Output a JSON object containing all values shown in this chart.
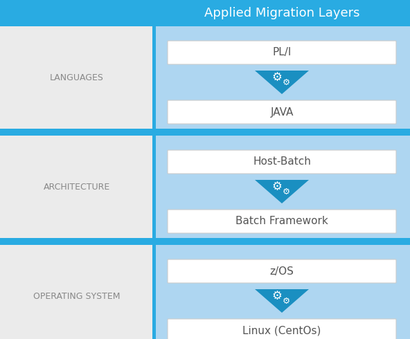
{
  "title": "Applied Migration Layers",
  "title_color": "#FFFFFF",
  "title_bg_color": "#29ABE2",
  "light_blue_panel": "#AED6F1",
  "separator_color": "#29ABE2",
  "left_bg_color": "#EBEBEB",
  "row_label_color": "#888888",
  "box_text_color": "#555555",
  "arrow_color": "#1A8FC1",
  "rows": [
    {
      "label": "LANGUAGES",
      "top_box": "PL/I",
      "bottom_box": "JAVA"
    },
    {
      "label": "ARCHITECTURE",
      "top_box": "Host-Batch",
      "bottom_box": "Batch Framework"
    },
    {
      "label": "OPERATING SYSTEM",
      "top_box": "z/OS",
      "bottom_box": "Linux (CentOs)"
    }
  ],
  "figsize": [
    5.92,
    4.9
  ],
  "dpi": 100
}
